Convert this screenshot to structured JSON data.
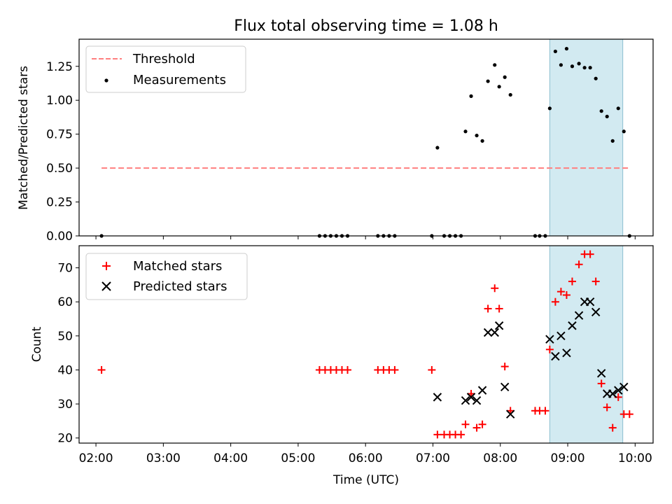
{
  "chart_data": [
    {
      "type": "scatter",
      "title": "Flux total observing time = 1.08 h",
      "ylabel": "Matched/Predicted stars",
      "xlabel": "",
      "xlim": [
        "01:45",
        "10:16"
      ],
      "ylim": [
        0,
        1.45
      ],
      "yticks": [
        0,
        0.25,
        0.5,
        0.75,
        1.0,
        1.25
      ],
      "ytick_labels": [
        "0.00",
        "0.25",
        "0.50",
        "0.75",
        "1.00",
        "1.25"
      ],
      "xticks": [
        "02:00",
        "03:00",
        "04:00",
        "05:00",
        "06:00",
        "07:00",
        "08:00",
        "09:00",
        "10:00"
      ],
      "legend": {
        "placement": "upper-left",
        "entries": [
          "Threshold",
          "Measurements"
        ]
      },
      "shaded_region": {
        "x": [
          "08:44",
          "09:49"
        ],
        "color": "#add8e6"
      },
      "threshold": {
        "name": "Threshold",
        "y": 0.5,
        "x": [
          "02:05",
          "09:55"
        ],
        "color": "#ff7f7f",
        "style": "dashed"
      },
      "series": [
        {
          "name": "Measurements",
          "color": "#000000",
          "points": [
            [
              "02:05",
              0.0
            ],
            [
              "05:19",
              0.0
            ],
            [
              "05:24",
              0.0
            ],
            [
              "05:29",
              0.0
            ],
            [
              "05:34",
              0.0
            ],
            [
              "05:39",
              0.0
            ],
            [
              "05:44",
              0.0
            ],
            [
              "06:11",
              0.0
            ],
            [
              "06:16",
              0.0
            ],
            [
              "06:21",
              0.0
            ],
            [
              "06:26",
              0.0
            ],
            [
              "06:59",
              0.0
            ],
            [
              "07:04",
              0.65
            ],
            [
              "07:10",
              0.0
            ],
            [
              "07:15",
              0.0
            ],
            [
              "07:20",
              0.0
            ],
            [
              "07:25",
              0.0
            ],
            [
              "07:29",
              0.77
            ],
            [
              "07:34",
              1.03
            ],
            [
              "07:39",
              0.74
            ],
            [
              "07:44",
              0.7
            ],
            [
              "07:49",
              1.14
            ],
            [
              "07:55",
              1.26
            ],
            [
              "07:59",
              1.1
            ],
            [
              "08:04",
              1.17
            ],
            [
              "08:09",
              1.04
            ],
            [
              "08:31",
              0.0
            ],
            [
              "08:35",
              0.0
            ],
            [
              "08:40",
              0.0
            ],
            [
              "08:44",
              0.94
            ],
            [
              "08:49",
              1.36
            ],
            [
              "08:54",
              1.26
            ],
            [
              "08:59",
              1.38
            ],
            [
              "09:04",
              1.25
            ],
            [
              "09:10",
              1.27
            ],
            [
              "09:15",
              1.24
            ],
            [
              "09:20",
              1.24
            ],
            [
              "09:25",
              1.16
            ],
            [
              "09:30",
              0.92
            ],
            [
              "09:35",
              0.88
            ],
            [
              "09:40",
              0.7
            ],
            [
              "09:45",
              0.94
            ],
            [
              "09:50",
              0.77
            ],
            [
              "09:55",
              0.0
            ]
          ]
        }
      ]
    },
    {
      "type": "scatter",
      "title": "",
      "ylabel": "Count",
      "xlabel": "Time (UTC)",
      "xlim": [
        "01:45",
        "10:16"
      ],
      "ylim": [
        18.5,
        76.5
      ],
      "yticks": [
        20,
        30,
        40,
        50,
        60,
        70
      ],
      "ytick_labels": [
        "20",
        "30",
        "40",
        "50",
        "60",
        "70"
      ],
      "xticks": [
        "02:00",
        "03:00",
        "04:00",
        "05:00",
        "06:00",
        "07:00",
        "08:00",
        "09:00",
        "10:00"
      ],
      "legend": {
        "placement": "upper-left",
        "entries": [
          "Matched stars",
          "Predicted stars"
        ]
      },
      "shaded_region": {
        "x": [
          "08:44",
          "09:49"
        ],
        "color": "#add8e6"
      },
      "series": [
        {
          "name": "Matched stars",
          "marker": "plus",
          "color": "#ff0000",
          "points": [
            [
              "02:05",
              40
            ],
            [
              "05:19",
              40
            ],
            [
              "05:24",
              40
            ],
            [
              "05:29",
              40
            ],
            [
              "05:34",
              40
            ],
            [
              "05:39",
              40
            ],
            [
              "05:44",
              40
            ],
            [
              "06:11",
              40
            ],
            [
              "06:16",
              40
            ],
            [
              "06:21",
              40
            ],
            [
              "06:26",
              40
            ],
            [
              "06:59",
              40
            ],
            [
              "07:04",
              21
            ],
            [
              "07:10",
              21
            ],
            [
              "07:15",
              21
            ],
            [
              "07:20",
              21
            ],
            [
              "07:25",
              21
            ],
            [
              "07:29",
              24
            ],
            [
              "07:34",
              33
            ],
            [
              "07:39",
              23
            ],
            [
              "07:44",
              24
            ],
            [
              "07:49",
              58
            ],
            [
              "07:55",
              64
            ],
            [
              "07:59",
              58
            ],
            [
              "08:04",
              41
            ],
            [
              "08:09",
              28
            ],
            [
              "08:31",
              28
            ],
            [
              "08:35",
              28
            ],
            [
              "08:40",
              28
            ],
            [
              "08:44",
              46
            ],
            [
              "08:49",
              60
            ],
            [
              "08:54",
              63
            ],
            [
              "08:59",
              62
            ],
            [
              "09:04",
              66
            ],
            [
              "09:10",
              71
            ],
            [
              "09:15",
              74
            ],
            [
              "09:20",
              74
            ],
            [
              "09:25",
              66
            ],
            [
              "09:30",
              36
            ],
            [
              "09:35",
              29
            ],
            [
              "09:40",
              23
            ],
            [
              "09:45",
              32
            ],
            [
              "09:50",
              27
            ],
            [
              "09:55",
              27
            ]
          ]
        },
        {
          "name": "Predicted stars",
          "marker": "x",
          "color": "#000000",
          "points": [
            [
              "07:04",
              32
            ],
            [
              "07:29",
              31
            ],
            [
              "07:34",
              32
            ],
            [
              "07:39",
              31
            ],
            [
              "07:44",
              34
            ],
            [
              "07:49",
              51
            ],
            [
              "07:55",
              51
            ],
            [
              "07:59",
              53
            ],
            [
              "08:04",
              35
            ],
            [
              "08:09",
              27
            ],
            [
              "08:44",
              49
            ],
            [
              "08:49",
              44
            ],
            [
              "08:54",
              50
            ],
            [
              "08:59",
              45
            ],
            [
              "09:04",
              53
            ],
            [
              "09:10",
              56
            ],
            [
              "09:15",
              60
            ],
            [
              "09:20",
              60
            ],
            [
              "09:25",
              57
            ],
            [
              "09:30",
              39
            ],
            [
              "09:35",
              33
            ],
            [
              "09:40",
              33
            ],
            [
              "09:45",
              34
            ],
            [
              "09:50",
              35
            ]
          ]
        }
      ]
    }
  ]
}
